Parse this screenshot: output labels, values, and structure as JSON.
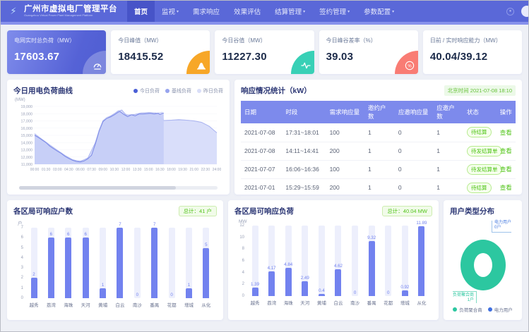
{
  "app": {
    "title": "广州市虚拟电厂管理平台",
    "subtitle": "Guangzhou Virtual Power Plant Management Platform",
    "nav": [
      {
        "label": "首页",
        "active": true,
        "dropdown": false
      },
      {
        "label": "监视",
        "active": false,
        "dropdown": true
      },
      {
        "label": "需求响应",
        "active": false,
        "dropdown": false
      },
      {
        "label": "效果评估",
        "active": false,
        "dropdown": false
      },
      {
        "label": "结算管理",
        "active": false,
        "dropdown": true
      },
      {
        "label": "签约管理",
        "active": false,
        "dropdown": true
      },
      {
        "label": "参数配置",
        "active": false,
        "dropdown": true
      }
    ]
  },
  "kpi_cards": [
    {
      "label": "电网实时总负荷（MW）",
      "value": "17603.67",
      "icon": "gauge-icon",
      "style": "primary",
      "accent": "rgba(255,255,255,0.25)"
    },
    {
      "label": "今日峰值（MW）",
      "value": "18415.52",
      "icon": "peak-icon",
      "style": "plain",
      "accent": "#f7a728"
    },
    {
      "label": "今日谷值（MW）",
      "value": "11227.30",
      "icon": "pulse-icon",
      "style": "plain",
      "accent": "#38d0b6"
    },
    {
      "label": "今日峰谷差率（%）",
      "value": "39.03",
      "icon": "percent-gauge-icon",
      "style": "plain",
      "accent": "#f97c74"
    },
    {
      "label": "日前 / 实时响应能力（MW）",
      "value": "40.04/39.12",
      "icon": "",
      "style": "plain",
      "accent": ""
    }
  ],
  "load_panel": {
    "title": "今日用电负荷曲线",
    "unit": "(MW)",
    "legend": [
      {
        "label": "今日负荷",
        "color": "#4a5fd6"
      },
      {
        "label": "基线负荷",
        "color": "#97a4ee"
      },
      {
        "label": "昨日负荷",
        "color": "#d9def8"
      }
    ],
    "chart_data": {
      "type": "area",
      "ylabel": "(MW)",
      "ylim": [
        11000,
        19000
      ],
      "yticks": [
        "11,000",
        "12,000",
        "13,000",
        "14,000",
        "15,000",
        "16,000",
        "17,000",
        "18,000",
        "19,000"
      ],
      "xticks": [
        "00:00",
        "01:30",
        "03:00",
        "04:30",
        "06:00",
        "07:30",
        "09:00",
        "10:30",
        "12:00",
        "13:30",
        "15:00",
        "16:30",
        "18:00",
        "19:30",
        "21:00",
        "22:30",
        "24:00"
      ],
      "series": [
        {
          "name": "昨日负荷",
          "color": "#ccd3f6",
          "fill": "#e6e9fc",
          "x": [
            0,
            1,
            2,
            3,
            4,
            5,
            5.5,
            6,
            6.5,
            7,
            7.5,
            8,
            8.5,
            9,
            9.5,
            10,
            10.5,
            11,
            11.5,
            12,
            12.5,
            13,
            13.5,
            14,
            15,
            16,
            16.8,
            17,
            18,
            19,
            20,
            21,
            22,
            23,
            24
          ],
          "y": [
            15250,
            14450,
            13700,
            12950,
            12250,
            11650,
            11500,
            11450,
            11600,
            11900,
            12400,
            14000,
            15800,
            17050,
            17500,
            17700,
            18000,
            18400,
            18450,
            17950,
            17700,
            17900,
            17800,
            18050,
            18100,
            18050,
            18200,
            17050,
            17100,
            17200,
            17100,
            17000,
            16800,
            16250,
            15300
          ]
        },
        {
          "name": "基线负荷",
          "color": "#aab4f0",
          "fill": "#d8ddfa",
          "x": [
            0,
            1,
            2,
            3,
            4,
            5,
            6,
            7,
            8,
            9,
            10,
            11,
            11.5,
            12,
            13,
            14,
            15,
            16,
            17,
            18,
            19,
            20,
            21,
            22,
            23,
            24
          ],
          "y": [
            15150,
            14400,
            13600,
            12900,
            12150,
            11600,
            11400,
            11850,
            14000,
            17000,
            17650,
            18350,
            18500,
            17800,
            17850,
            18100,
            18150,
            18100,
            17050,
            17100,
            17150,
            17100,
            17000,
            16800,
            16250,
            15350
          ]
        },
        {
          "name": "今日负荷",
          "color": "#7b89e6",
          "fill": "#c6cef7",
          "x": [
            0,
            0.5,
            1,
            1.5,
            2,
            2.5,
            3,
            3.5,
            4,
            4.5,
            5,
            5.5,
            6,
            6.5,
            7,
            7.5,
            8,
            8.5,
            9,
            9.5,
            10,
            10.5,
            11,
            11.25,
            11.75,
            12.25,
            12.75,
            13.25,
            13.75,
            14.25,
            14.75,
            15.25,
            15.75,
            16.25,
            16.5,
            17
          ],
          "y": [
            15000,
            14700,
            14350,
            14000,
            13500,
            13150,
            12800,
            12500,
            12100,
            11800,
            11550,
            11380,
            11300,
            11450,
            11750,
            12250,
            13800,
            15600,
            16900,
            17350,
            17550,
            17850,
            18200,
            18300,
            17900,
            17600,
            17850,
            17700,
            17950,
            17950,
            18000,
            18050,
            17950,
            18050,
            17900,
            18100
          ]
        }
      ]
    }
  },
  "response_panel": {
    "title": "响应情况统计（kW）",
    "timestamp": "北京时间 2021-07-08 18:10",
    "columns": [
      "日期",
      "时段",
      "需求响应量",
      "邀约户数",
      "应邀响应量",
      "应邀户数",
      "状态",
      "操作"
    ],
    "action_label": "查看",
    "rows": [
      {
        "date": "2021-07-08",
        "period": "17:31~18:01",
        "demand": "100",
        "invited": "1",
        "responded_amount": "0",
        "responded_users": "1",
        "status": "待结算"
      },
      {
        "date": "2021-07-08",
        "period": "14:11~14:41",
        "demand": "200",
        "invited": "1",
        "responded_amount": "0",
        "responded_users": "1",
        "status": "待发结算单"
      },
      {
        "date": "2021-07-07",
        "period": "16:06~16:36",
        "demand": "100",
        "invited": "1",
        "responded_amount": "0",
        "responded_users": "1",
        "status": "待发结算单"
      },
      {
        "date": "2021-07-01",
        "period": "15:29~15:59",
        "demand": "200",
        "invited": "1",
        "responded_amount": "0",
        "responded_users": "1",
        "status": "待结算"
      }
    ]
  },
  "households_panel": {
    "title": "各区局可响应户数",
    "badge": "总计：41 户",
    "unit": "户",
    "chart_data": {
      "type": "bar",
      "categories": [
        "越秀",
        "荔湾",
        "海珠",
        "天河",
        "黄埔",
        "白云",
        "南沙",
        "番禺",
        "花都",
        "增城",
        "从化"
      ],
      "values": [
        2,
        6,
        6,
        6,
        1,
        7,
        0,
        7,
        0,
        1,
        5
      ],
      "value_labels": [
        "2",
        "6",
        "6",
        "6",
        "1",
        "7",
        "0",
        "7",
        "0",
        "1",
        "5"
      ],
      "ylim": [
        0,
        7
      ],
      "yticks": [
        0,
        1,
        2,
        3,
        4,
        5,
        6,
        7
      ],
      "bar_color": "#7282ef"
    }
  },
  "district_load_panel": {
    "title": "各区局可响应负荷",
    "badge": "总计：40.04 MW",
    "unit": "MW",
    "chart_data": {
      "type": "bar",
      "categories": [
        "越秀",
        "荔湾",
        "海珠",
        "天河",
        "黄埔",
        "白云",
        "南沙",
        "番禺",
        "花都",
        "增城",
        "从化"
      ],
      "values": [
        1.39,
        4.17,
        4.84,
        2.49,
        0.4,
        4.62,
        0,
        9.32,
        0,
        0.92,
        11.89
      ],
      "value_labels": [
        "1.39",
        "4.17",
        "4.84",
        "2.49",
        "0.4",
        "4.62",
        "0",
        "9.32",
        "0",
        "0.92",
        "11.89"
      ],
      "ylim": [
        0,
        12
      ],
      "yticks": [
        0,
        2,
        4,
        6,
        8,
        10,
        12
      ],
      "bar_color": "#7282ef"
    }
  },
  "user_type_panel": {
    "title": "用户类型分布",
    "chart_data": {
      "type": "pie",
      "slices": [
        {
          "label": "负荷聚合商",
          "value": 1,
          "display": "1户",
          "color": "#2cc7a0"
        },
        {
          "label": "电力用户",
          "value": 0,
          "display": "0户",
          "color": "#3f6fe0"
        }
      ]
    }
  },
  "colors": {
    "header": "#5a68d8",
    "primary_bar": "#7282ef",
    "success_green": "#52c41a",
    "donut_teal": "#2cc7a0"
  }
}
